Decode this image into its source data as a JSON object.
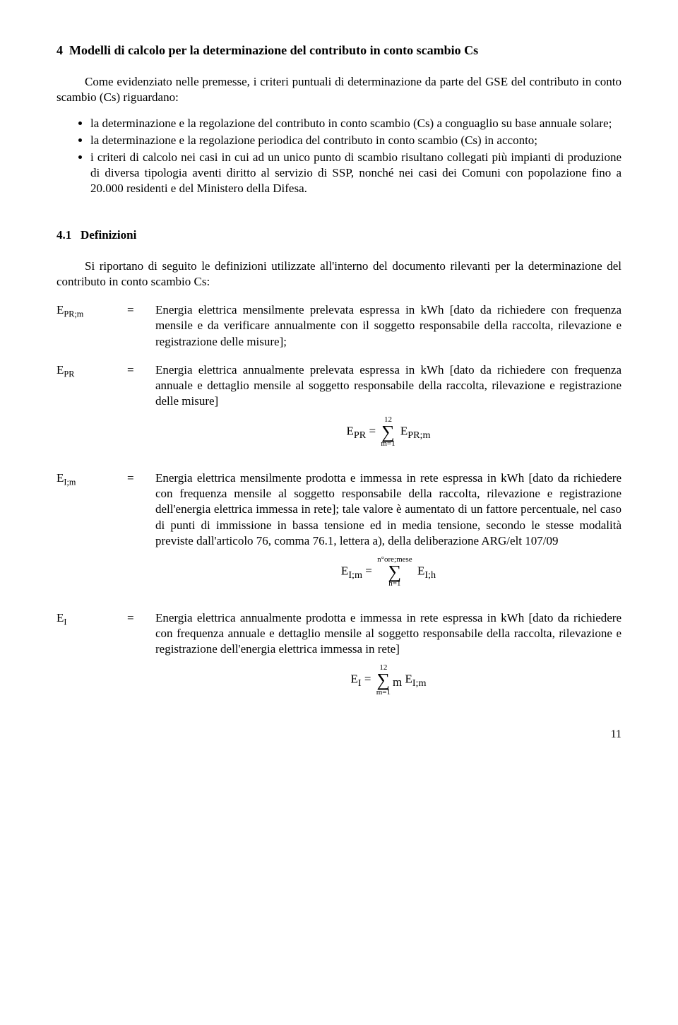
{
  "section": {
    "number": "4",
    "title": "Modelli di calcolo per la determinazione del contributo in conto scambio Cs",
    "intro": "Come evidenziato nelle premesse, i criteri puntuali di determinazione da parte del GSE del contributo in conto scambio (Cs) riguardano:",
    "bullets": [
      "la determinazione e la regolazione del contributo in conto scambio (Cs) a conguaglio su base annuale solare;",
      "la determinazione e la regolazione periodica del contributo in conto scambio (Cs) in acconto;",
      "i criteri di calcolo nei casi in cui ad un unico punto di scambio risultano collegati più impianti di produzione di diversa tipologia aventi diritto al servizio di SSP, nonché nei casi dei Comuni con popolazione fino a 20.000 residenti e del Ministero della Difesa."
    ]
  },
  "subsection": {
    "number": "4.1",
    "title": "Definizioni",
    "intro": "Si riportano di seguito le definizioni utilizzate all'interno del documento rilevanti per la determinazione del contributo in conto scambio Cs:"
  },
  "definitions": [
    {
      "symbol_main": "E",
      "symbol_sub": "PR;m",
      "eq": "=",
      "text": "Energia elettrica mensilmente prelevata espressa in kWh [dato da richiedere con frequenza mensile e da verificare annualmente con il soggetto responsabile della raccolta, rilevazione e registrazione delle misure];"
    },
    {
      "symbol_main": "E",
      "symbol_sub": "PR",
      "eq": "=",
      "text": "Energia elettrica annualmente prelevata espressa in kWh [dato da richiedere con frequenza annuale e dettaglio mensile al soggetto responsabile della raccolta, rilevazione e registrazione delle misure]",
      "formula_html": "E<sub>PR</sub> = <span class='sum'><span class='top'>12</span><span class='sigma'>&#8721;</span><span class='bottom'>m=1</span></span> E<sub>PR;m</sub>"
    },
    {
      "symbol_main": "E",
      "symbol_sub": "I;m",
      "eq": "=",
      "text": "Energia elettrica mensilmente prodotta e immessa in rete espressa in kWh [dato da richiedere con frequenza mensile  al soggetto responsabile della raccolta, rilevazione e registrazione dell'energia elettrica immessa in rete]; tale valore è aumentato di un fattore percentuale, nel caso di punti di immissione in bassa tensione ed in media tensione, secondo le stesse modalità previste dall'articolo 76, comma 76.1, lettera a), della deliberazione ARG/elt 107/09",
      "formula_html": "E<sub>I;m</sub> = <span class='sum'><span class='top'>n°ore;mese</span><span class='sigma'>&#8721;</span><span class='bottom'>h=1</span></span> E<sub>I;h</sub>"
    },
    {
      "symbol_main": "E",
      "symbol_sub": "I",
      "eq": "=",
      "text": "Energia elettrica annualmente prodotta e immessa in rete espressa in kWh [dato da richiedere con frequenza annuale e dettaglio mensile al soggetto responsabile della raccolta, rilevazione e registrazione dell'energia elettrica immessa in rete]",
      "formula_html": "E<sub>I</sub> = <span class='sum'><span class='top'>12</span><span class='sigma'>&#8721;</span><span class='bottom'>m=1</span></span><span style='position:relative; bottom:-4px;'>m</span> E<sub>I;m</sub>"
    }
  ],
  "page_number": "11"
}
